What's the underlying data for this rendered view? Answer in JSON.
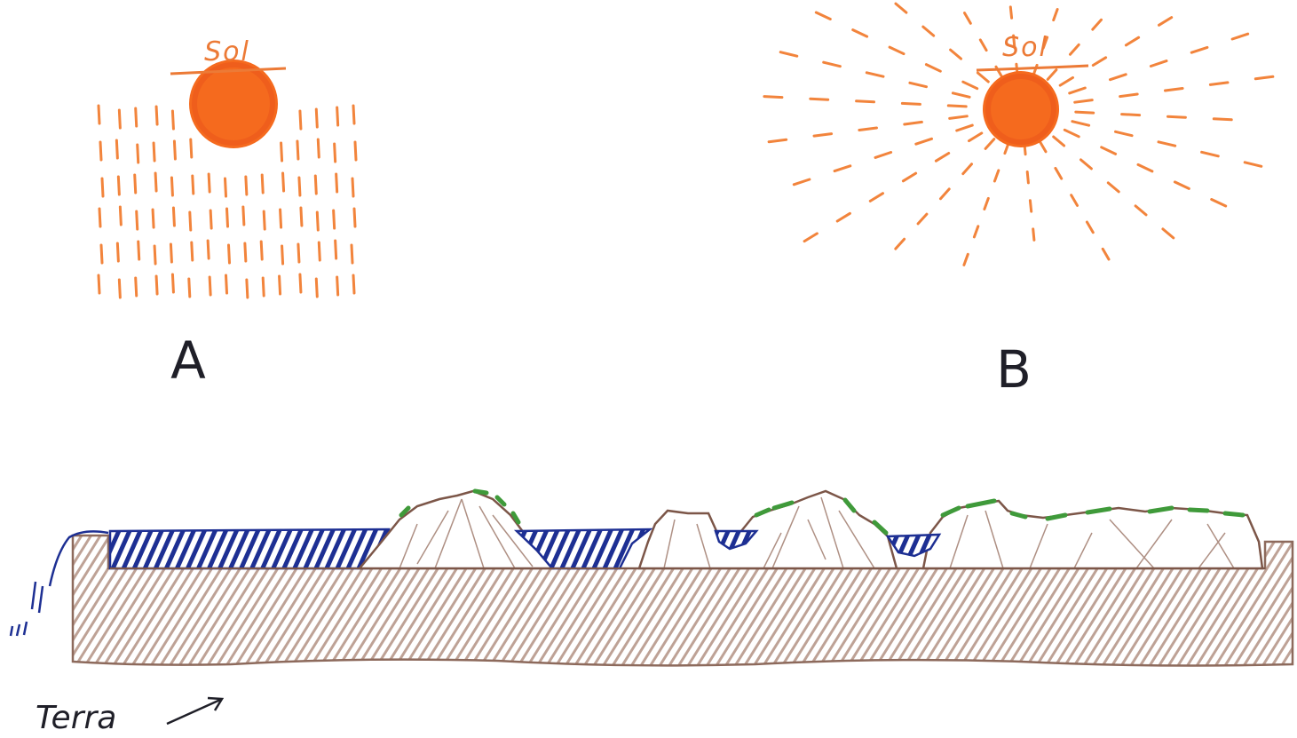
{
  "panel_a": {
    "sun_label": "Sol",
    "panel_label": "A"
  },
  "panel_b": {
    "sun_label": "Sol",
    "panel_label": "B"
  },
  "ground": {
    "label": "Terra"
  },
  "colors": {
    "sun": "#f56a1e",
    "rays": "#f2843c",
    "water": "#1d2f93",
    "earth": "#9a7465",
    "vegetation": "#3f9a3a",
    "ink": "#1f1f28"
  }
}
